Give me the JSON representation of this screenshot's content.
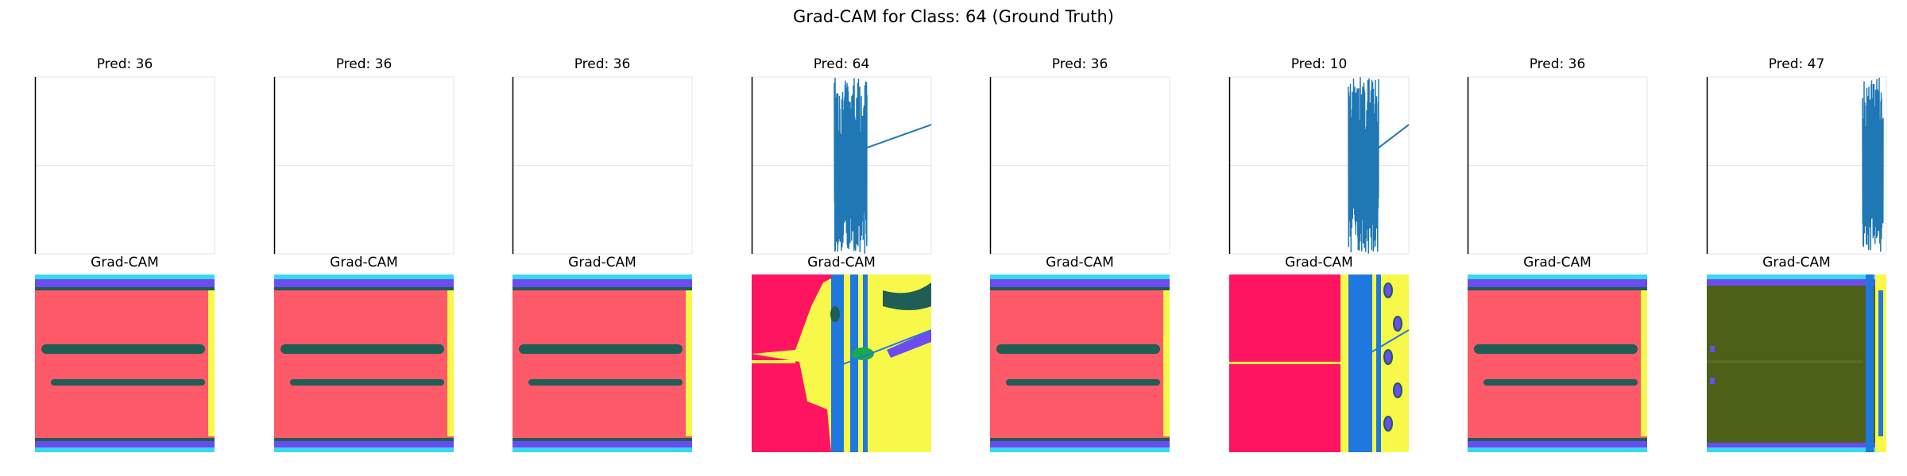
{
  "figure": {
    "suptitle": "Grad-CAM for Class: 64 (Ground Truth)",
    "cam_title": "Grad-CAM"
  },
  "colors": {
    "line": "#1f77b4",
    "frame": "#000000",
    "grid": "#e6e6e6",
    "cam_red": "#ff5a6a",
    "cam_magenta": "#ff1461",
    "cam_band": "#1e5e55",
    "cam_yellow": "#f8f84a",
    "cam_blue": "#1f78e0",
    "cam_purple": "#6a4cf0",
    "cam_cyan": "#38d8f0",
    "cam_olive": "#4d6018",
    "cam_green": "#1aa84a"
  },
  "panels": [
    {
      "pred_label": "Pred: 36",
      "pred": 36,
      "pattern": "flat",
      "cam_style": "banded"
    },
    {
      "pred_label": "Pred: 36",
      "pred": 36,
      "pattern": "flat",
      "cam_style": "banded"
    },
    {
      "pred_label": "Pred: 36",
      "pred": 36,
      "pattern": "flat",
      "cam_style": "banded"
    },
    {
      "pred_label": "Pred: 64",
      "pred": 64,
      "pattern": "burst-mid",
      "cam_style": "mixed"
    },
    {
      "pred_label": "Pred: 36",
      "pred": 36,
      "pattern": "flat",
      "cam_style": "banded"
    },
    {
      "pred_label": "Pred: 10",
      "pred": 10,
      "pattern": "burst-right",
      "cam_style": "split"
    },
    {
      "pred_label": "Pred: 36",
      "pred": 36,
      "pattern": "flat",
      "cam_style": "banded"
    },
    {
      "pred_label": "Pred: 47",
      "pred": 47,
      "pattern": "burst-edge",
      "cam_style": "olive"
    }
  ],
  "chart_data": {
    "type": "line",
    "ground_truth_class": 64,
    "predicted_classes": [
      36,
      36,
      36,
      64,
      36,
      10,
      36,
      47
    ],
    "grid": true
  }
}
